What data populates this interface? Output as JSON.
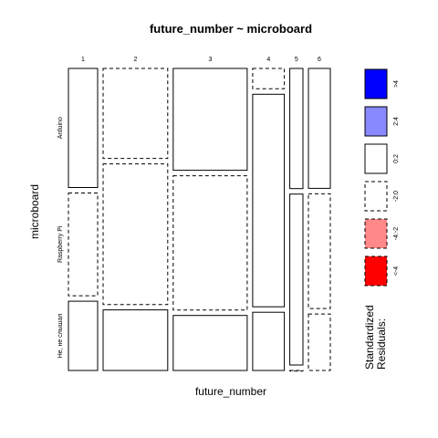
{
  "chart_data": {
    "type": "mosaic",
    "title": "future_number ~ microboard",
    "xlabel": "future_number",
    "ylabel": "microboard",
    "x_categories": [
      "1",
      "2",
      "3",
      "4",
      "5",
      "6"
    ],
    "y_categories": [
      "Arduino",
      "Raspberry Pi",
      "Не, не слышал"
    ],
    "column_shares": [
      0.096,
      0.212,
      0.243,
      0.104,
      0.043,
      0.072
    ],
    "cells": [
      {
        "x": "1",
        "y": "Arduino",
        "share": 0.409,
        "residual_class": "0:2"
      },
      {
        "x": "1",
        "y": "Raspberry Pi",
        "share": 0.353,
        "residual_class": "-2:0"
      },
      {
        "x": "1",
        "y": "Не, не слышал",
        "share": 0.238,
        "residual_class": "0:2"
      },
      {
        "x": "2",
        "y": "Arduino",
        "share": 0.309,
        "residual_class": "-2:0"
      },
      {
        "x": "2",
        "y": "Raspberry Pi",
        "share": 0.483,
        "residual_class": "-2:0"
      },
      {
        "x": "2",
        "y": "Не, не слышал",
        "share": 0.208,
        "residual_class": "0:2"
      },
      {
        "x": "3",
        "y": "Arduino",
        "share": 0.35,
        "residual_class": "0:2"
      },
      {
        "x": "3",
        "y": "Raspberry Pi",
        "share": 0.461,
        "residual_class": "-2:0"
      },
      {
        "x": "3",
        "y": "Не, не слышал",
        "share": 0.189,
        "residual_class": "0:2"
      },
      {
        "x": "4",
        "y": "Arduino",
        "share": 0.07,
        "residual_class": "-2:0"
      },
      {
        "x": "4",
        "y": "Raspberry Pi",
        "share": 0.73,
        "residual_class": "0:2"
      },
      {
        "x": "4",
        "y": "Не, не слышал",
        "share": 0.2,
        "residual_class": "0:2"
      },
      {
        "x": "5",
        "y": "Arduino",
        "share": 0.413,
        "residual_class": "0:2"
      },
      {
        "x": "5",
        "y": "Raspberry Pi",
        "share": 0.587,
        "residual_class": "0:2"
      },
      {
        "x": "5",
        "y": "Не, не слышал",
        "share": 0.0,
        "residual_class": "-2:0"
      },
      {
        "x": "6",
        "y": "Arduino",
        "share": 0.412,
        "residual_class": "0:2"
      },
      {
        "x": "6",
        "y": "Raspberry Pi",
        "share": 0.394,
        "residual_class": "-2:0"
      },
      {
        "x": "6",
        "y": "Не, не слышал",
        "share": 0.194,
        "residual_class": "-2:0"
      }
    ],
    "legend": {
      "title_lines": [
        "Standardized",
        "Residuals:"
      ],
      "placement": "right",
      "entries": [
        {
          "label": ">4",
          "color": "#0000ff",
          "dashed": false
        },
        {
          "label": "2:4",
          "color": "#8888ff",
          "dashed": false
        },
        {
          "label": "0:2",
          "color": "#ffffff",
          "dashed": false
        },
        {
          "label": "-2:0",
          "color": "#ffffff",
          "dashed": true
        },
        {
          "label": "-4:-2",
          "color": "#ff8888",
          "dashed": true
        },
        {
          "label": "<-4",
          "color": "#ff0000",
          "dashed": true
        }
      ]
    }
  }
}
